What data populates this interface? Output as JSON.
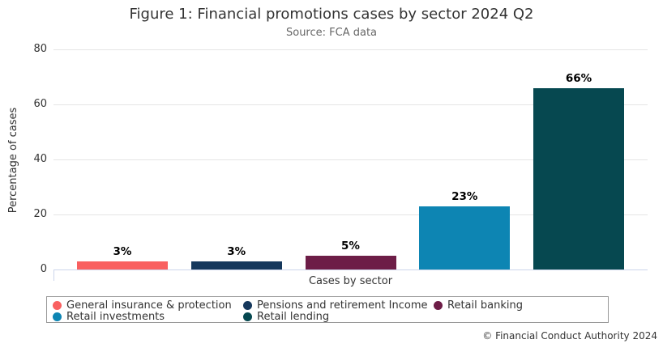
{
  "chart_data": {
    "type": "bar",
    "title": "Figure 1: Financial promotions cases by sector 2024 Q2",
    "subtitle": "Source: FCA data",
    "xlabel": "Cases by sector",
    "ylabel": "Percentage of cases",
    "ylim": [
      0,
      80
    ],
    "yticks": [
      0,
      20,
      40,
      60,
      80
    ],
    "grid": true,
    "legend_position": "bottom",
    "value_suffix": "%",
    "series": [
      {
        "name": "General insurance & protection",
        "value": 3,
        "label": "3%",
        "color": "#F96060"
      },
      {
        "name": "Pensions and retirement Income",
        "value": 3,
        "label": "3%",
        "color": "#15385C"
      },
      {
        "name": "Retail banking",
        "value": 5,
        "label": "5%",
        "color": "#6D1D47"
      },
      {
        "name": "Retail investments",
        "value": 23,
        "label": "23%",
        "color": "#0D85B3"
      },
      {
        "name": "Retail lending",
        "value": 66,
        "label": "66%",
        "color": "#064850"
      }
    ]
  },
  "colors": {
    "gridline": "#E6E6E6",
    "axis_line": "#CCD6EB",
    "title_text": "#333333",
    "subtitle_text": "#666666",
    "legend_border": "#999999"
  },
  "footer": {
    "copyright": "© Financial Conduct Authority 2024"
  }
}
